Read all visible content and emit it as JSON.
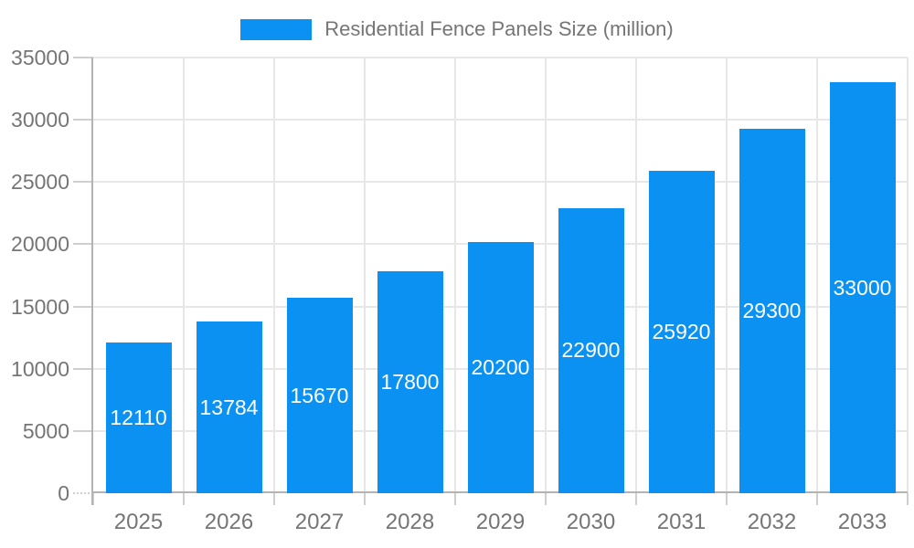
{
  "chart_data": {
    "type": "bar",
    "title": "",
    "legend": "Residential Fence Panels Size (million)",
    "legend_position": "top",
    "categories": [
      "2025",
      "2026",
      "2027",
      "2028",
      "2029",
      "2030",
      "2031",
      "2032",
      "2033"
    ],
    "values": [
      12110,
      13784,
      15670,
      17800,
      20200,
      22900,
      25920,
      29300,
      33000
    ],
    "xlabel": "",
    "ylabel": "",
    "ylim": [
      0,
      35000
    ],
    "yticks": [
      0,
      5000,
      10000,
      15000,
      20000,
      25000,
      30000,
      35000
    ],
    "grid": true,
    "bar_value_labels_visible": true,
    "series_color": "#0a91f2",
    "axis_label_color": "#757575",
    "value_label_color": "#ffffff"
  }
}
